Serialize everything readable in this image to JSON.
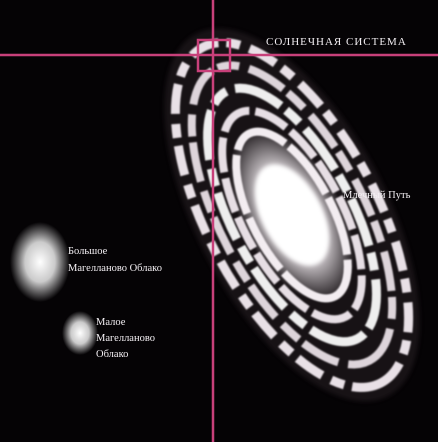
{
  "labels": {
    "solar_system": "СОЛНЕЧНАЯ СИСТЕМА",
    "milky_way": "Млечный Путь",
    "large_cloud": [
      "Большое",
      "Магелланово Облако"
    ],
    "small_cloud": [
      "Малое",
      "Магелланово",
      "Облако"
    ]
  }
}
